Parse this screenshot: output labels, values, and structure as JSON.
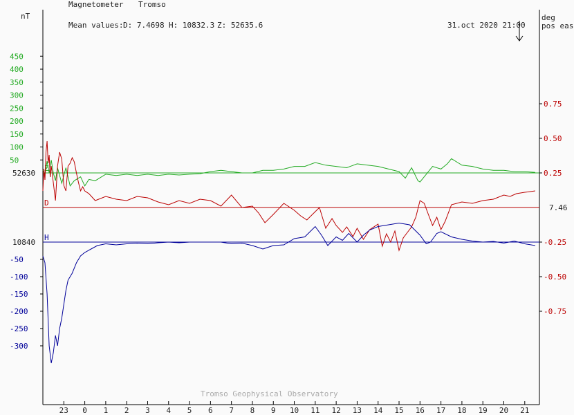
{
  "header": {
    "instrument": "Magnetometer",
    "station": "Tromso",
    "mean_label": "Mean values:",
    "mean_d": "D: 7.4698",
    "mean_h": "H: 10832.3",
    "mean_z": "Z: 52635.6",
    "timestamp": "31.oct 2020 21:00",
    "left_unit": "nT",
    "right_unit_1": "deg",
    "right_unit_2": "pos east",
    "footer": "Tromso Geophysical Observatory"
  },
  "colors": {
    "z": "#22aa22",
    "d": "#bb0000",
    "h": "#000099",
    "axis": "#000000",
    "footer": "#aaaaaa"
  },
  "chart_data": {
    "type": "line",
    "x_ticks": [
      "23",
      "0",
      "1",
      "2",
      "3",
      "4",
      "5",
      "6",
      "7",
      "8",
      "9",
      "10",
      "11",
      "12",
      "13",
      "14",
      "15",
      "16",
      "17",
      "18",
      "19",
      "20",
      "21"
    ],
    "x_range_hours": [
      -2.0,
      21.7
    ],
    "z_scale": {
      "tick_labels": [
        "450",
        "400",
        "350",
        "300",
        "250",
        "200",
        "150",
        "100",
        "50"
      ],
      "tick_values": [
        450,
        400,
        350,
        300,
        250,
        200,
        150,
        100,
        50
      ],
      "baseline_label": "52630",
      "baseline_value": 0
    },
    "h_scale": {
      "tick_labels": [
        "-50",
        "-100",
        "-150",
        "-200",
        "-250",
        "-300"
      ],
      "tick_values": [
        -50,
        -100,
        -150,
        -200,
        -250,
        -300
      ],
      "baseline_label": "10840",
      "baseline_value": 0
    },
    "d_scale": {
      "tick_labels": [
        "0.75",
        "0.50",
        "0.25",
        "-0.25",
        "-0.50",
        "-0.75"
      ],
      "tick_values": [
        0.75,
        0.5,
        0.25,
        -0.25,
        -0.5,
        -0.75
      ],
      "baseline_label": "7.46",
      "baseline_value": 0
    },
    "series": [
      {
        "name": "Z",
        "x": [
          -2.0,
          -1.9,
          -1.8,
          -1.7,
          -1.6,
          -1.5,
          -1.4,
          -1.3,
          -1.1,
          -0.9,
          -0.7,
          -0.5,
          -0.2,
          0.0,
          0.2,
          0.5,
          1.0,
          1.5,
          2.0,
          2.5,
          3.0,
          3.5,
          4.0,
          4.5,
          5.0,
          5.5,
          6.0,
          6.5,
          7.0,
          7.5,
          8.0,
          8.5,
          9.0,
          9.5,
          10.0,
          10.5,
          11.0,
          11.5,
          12.0,
          12.5,
          13.0,
          13.5,
          14.0,
          14.5,
          15.0,
          15.3,
          15.6,
          15.9,
          16.0,
          16.3,
          16.6,
          17.0,
          17.3,
          17.5,
          17.8,
          18.0,
          18.5,
          19.0,
          19.5,
          20.0,
          20.5,
          21.0,
          21.5
        ],
        "y": [
          10,
          -5,
          45,
          0,
          50,
          0,
          -30,
          20,
          -40,
          20,
          -50,
          -30,
          -15,
          -50,
          -25,
          -30,
          -5,
          -10,
          -5,
          -10,
          -5,
          -10,
          -5,
          -8,
          -5,
          -3,
          5,
          10,
          5,
          0,
          0,
          10,
          10,
          15,
          25,
          25,
          40,
          30,
          25,
          20,
          35,
          30,
          25,
          15,
          5,
          -20,
          20,
          -30,
          -35,
          -5,
          25,
          15,
          35,
          55,
          40,
          30,
          25,
          15,
          10,
          10,
          5,
          5,
          2
        ]
      },
      {
        "name": "D",
        "x": [
          -2.0,
          -1.95,
          -1.9,
          -1.85,
          -1.8,
          -1.75,
          -1.7,
          -1.65,
          -1.6,
          -1.5,
          -1.4,
          -1.3,
          -1.2,
          -1.1,
          -1.0,
          -0.9,
          -0.8,
          -0.7,
          -0.6,
          -0.5,
          -0.4,
          -0.3,
          -0.2,
          -0.1,
          0.0,
          0.2,
          0.5,
          1.0,
          1.5,
          2.0,
          2.5,
          3.0,
          3.5,
          4.0,
          4.5,
          5.0,
          5.5,
          6.0,
          6.5,
          7.0,
          7.5,
          8.0,
          8.3,
          8.6,
          9.0,
          9.5,
          10.0,
          10.3,
          10.6,
          11.0,
          11.2,
          11.5,
          11.8,
          12.0,
          12.3,
          12.5,
          12.8,
          13.0,
          13.3,
          13.6,
          14.0,
          14.2,
          14.4,
          14.6,
          14.8,
          15.0,
          15.2,
          15.4,
          15.6,
          15.8,
          16.0,
          16.2,
          16.4,
          16.6,
          16.8,
          17.0,
          17.2,
          17.5,
          18.0,
          18.5,
          19.0,
          19.5,
          20.0,
          20.3,
          20.6,
          21.0,
          21.5
        ],
        "y": [
          0.12,
          0.28,
          0.2,
          0.4,
          0.48,
          0.32,
          0.38,
          0.22,
          0.3,
          0.18,
          0.05,
          0.3,
          0.4,
          0.35,
          0.16,
          0.12,
          0.3,
          0.32,
          0.36,
          0.33,
          0.25,
          0.18,
          0.12,
          0.15,
          0.12,
          0.1,
          0.05,
          0.08,
          0.06,
          0.05,
          0.08,
          0.07,
          0.04,
          0.02,
          0.05,
          0.03,
          0.06,
          0.05,
          0.01,
          0.09,
          0.0,
          0.01,
          -0.04,
          -0.11,
          -0.05,
          0.03,
          -0.02,
          -0.06,
          -0.09,
          -0.03,
          0.0,
          -0.15,
          -0.08,
          -0.13,
          -0.18,
          -0.14,
          -0.21,
          -0.15,
          -0.23,
          -0.16,
          -0.12,
          -0.28,
          -0.19,
          -0.25,
          -0.17,
          -0.31,
          -0.22,
          -0.18,
          -0.14,
          -0.07,
          0.05,
          0.03,
          -0.05,
          -0.13,
          -0.07,
          -0.16,
          -0.1,
          0.02,
          0.04,
          0.03,
          0.05,
          0.06,
          0.09,
          0.08,
          0.1,
          0.11,
          0.12
        ]
      },
      {
        "name": "H",
        "x": [
          -2.0,
          -1.9,
          -1.8,
          -1.7,
          -1.6,
          -1.5,
          -1.4,
          -1.3,
          -1.2,
          -1.1,
          -1.0,
          -0.9,
          -0.8,
          -0.6,
          -0.4,
          -0.2,
          0.0,
          0.3,
          0.6,
          1.0,
          1.5,
          2.0,
          2.5,
          3.0,
          3.5,
          4.0,
          4.5,
          5.0,
          5.5,
          6.0,
          6.5,
          7.0,
          7.5,
          8.0,
          8.5,
          9.0,
          9.5,
          10.0,
          10.5,
          11.0,
          11.3,
          11.6,
          12.0,
          12.3,
          12.6,
          13.0,
          13.3,
          13.6,
          14.0,
          14.5,
          15.0,
          15.5,
          16.0,
          16.3,
          16.5,
          16.8,
          17.0,
          17.5,
          18.0,
          18.5,
          19.0,
          19.5,
          20.0,
          20.5,
          21.0,
          21.5
        ],
        "y": [
          -40,
          -60,
          -150,
          -300,
          -350,
          -320,
          -270,
          -300,
          -250,
          -220,
          -180,
          -140,
          -110,
          -90,
          -60,
          -40,
          -30,
          -20,
          -10,
          -5,
          -8,
          -5,
          -3,
          -5,
          -2,
          0,
          -2,
          0,
          0,
          0,
          0,
          -5,
          -3,
          -10,
          -20,
          -10,
          -8,
          10,
          15,
          45,
          20,
          -10,
          15,
          5,
          25,
          0,
          20,
          35,
          45,
          50,
          55,
          50,
          20,
          -5,
          0,
          25,
          30,
          15,
          8,
          3,
          0,
          2,
          -3,
          3,
          -5,
          -10
        ]
      }
    ]
  }
}
